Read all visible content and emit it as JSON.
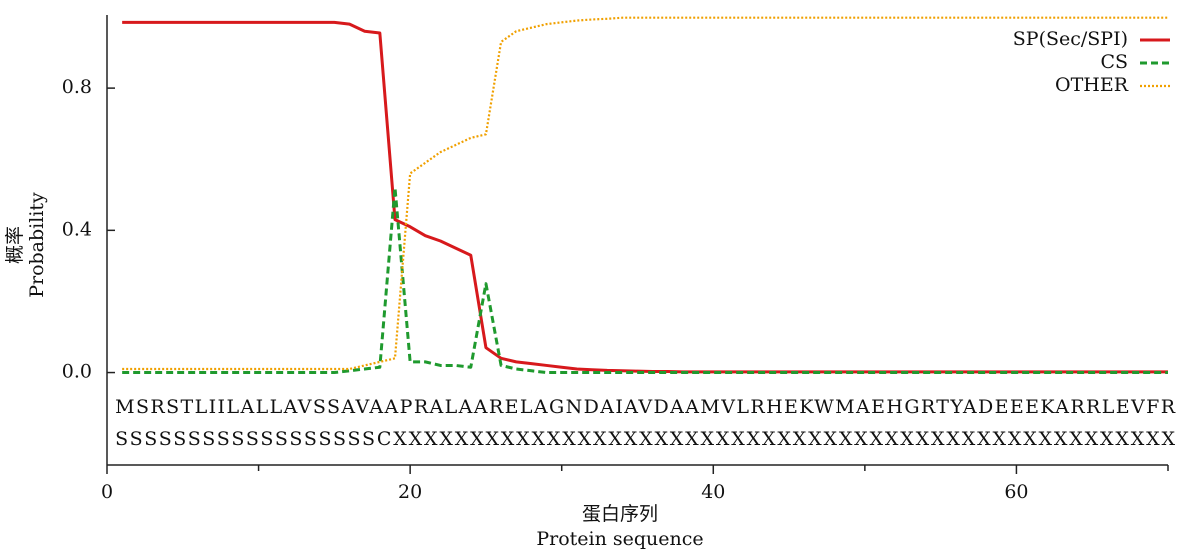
{
  "chart_data": {
    "type": "line",
    "x_label": [
      "蛋白序列",
      "Protein sequence"
    ],
    "y_label": [
      "概率",
      "Probability"
    ],
    "sequence": "MSRSTLIILALLAVSSAVAAPRALAARELAGNDAIAVDAAMVLRHEKWMAEHGRTYADEEEKARRLEVFR",
    "annotation": "SSSSSSSSSSSSSSSSSSCXXXXXXXXXXXXXXXXXXXXXXXXXXXXXXXXXXXXXXXXXXXXXXXXXXX",
    "x": [
      1,
      2,
      3,
      4,
      5,
      6,
      7,
      8,
      9,
      10,
      11,
      12,
      13,
      14,
      15,
      16,
      17,
      18,
      19,
      20,
      21,
      22,
      23,
      24,
      25,
      26,
      27,
      28,
      29,
      30,
      31,
      32,
      33,
      34,
      35,
      36,
      37,
      38,
      39,
      40,
      41,
      42,
      43,
      44,
      45,
      46,
      47,
      48,
      49,
      50,
      51,
      52,
      53,
      54,
      55,
      56,
      57,
      58,
      59,
      60,
      61,
      62,
      63,
      64,
      65,
      66,
      67,
      68,
      69,
      70
    ],
    "xlim": [
      0,
      70
    ],
    "xticks": [
      0,
      20,
      40,
      60
    ],
    "xminor_ticks": [
      10,
      30,
      50,
      70
    ],
    "ylim": [
      -0.26,
      1.0
    ],
    "yticks": [
      {
        "value": 0,
        "label": "0.0"
      },
      0.4,
      0.8
    ],
    "legend": "upper right",
    "series": [
      {
        "name": "SP(Sec/SPI)",
        "color": "#d7191c",
        "style": "solid",
        "values": [
          0.985,
          0.985,
          0.985,
          0.985,
          0.985,
          0.985,
          0.985,
          0.985,
          0.985,
          0.985,
          0.985,
          0.985,
          0.985,
          0.985,
          0.985,
          0.98,
          0.96,
          0.955,
          0.43,
          0.41,
          0.385,
          0.37,
          0.35,
          0.33,
          0.07,
          0.04,
          0.03,
          0.025,
          0.02,
          0.015,
          0.01,
          0.008,
          0.006,
          0.005,
          0.004,
          0.003,
          0.003,
          0.002,
          0.002,
          0.002,
          0.002,
          0.002,
          0.002,
          0.002,
          0.002,
          0.002,
          0.002,
          0.002,
          0.002,
          0.002,
          0.002,
          0.002,
          0.002,
          0.002,
          0.002,
          0.002,
          0.002,
          0.002,
          0.002,
          0.002,
          0.002,
          0.002,
          0.002,
          0.002,
          0.002,
          0.002,
          0.002,
          0.002,
          0.002,
          0.002
        ]
      },
      {
        "name": "CS",
        "color": "#1f9a2e",
        "style": "dashed",
        "values": [
          0,
          0,
          0,
          0,
          0,
          0,
          0,
          0,
          0,
          0,
          0,
          0,
          0,
          0,
          0,
          0.005,
          0.01,
          0.015,
          0.52,
          0.03,
          0.03,
          0.02,
          0.02,
          0.015,
          0.25,
          0.02,
          0.01,
          0.005,
          0,
          0,
          0,
          0,
          0,
          0,
          0,
          0,
          0,
          0,
          0,
          0,
          0,
          0,
          0,
          0,
          0,
          0,
          0,
          0,
          0,
          0,
          0,
          0,
          0,
          0,
          0,
          0,
          0,
          0,
          0,
          0,
          0,
          0,
          0,
          0,
          0,
          0,
          0,
          0,
          0,
          0
        ]
      },
      {
        "name": "OTHER",
        "color": "#f0a000",
        "style": "dotted",
        "values": [
          0.01,
          0.01,
          0.01,
          0.01,
          0.01,
          0.01,
          0.01,
          0.01,
          0.01,
          0.01,
          0.01,
          0.01,
          0.01,
          0.01,
          0.01,
          0.01,
          0.02,
          0.03,
          0.04,
          0.56,
          0.59,
          0.62,
          0.64,
          0.66,
          0.67,
          0.93,
          0.96,
          0.97,
          0.98,
          0.985,
          0.99,
          0.993,
          0.995,
          0.998,
          0.998,
          0.998,
          0.998,
          0.998,
          0.998,
          0.998,
          0.998,
          0.998,
          0.998,
          0.998,
          0.998,
          0.998,
          0.998,
          0.998,
          0.998,
          0.998,
          0.998,
          0.998,
          0.998,
          0.998,
          0.998,
          0.998,
          0.998,
          0.998,
          0.998,
          0.998,
          0.998,
          0.998,
          0.998,
          0.998,
          0.998,
          0.998,
          0.998,
          0.998,
          0.998,
          0.998
        ]
      }
    ]
  }
}
